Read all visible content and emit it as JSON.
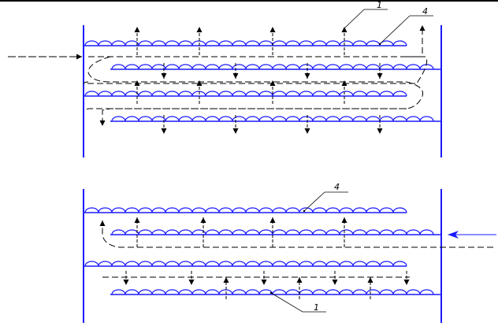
{
  "figure": {
    "colors": {
      "wall": "#1a1aff",
      "plate": "#1a1aff",
      "flow": "#000000",
      "leader": "#000000"
    },
    "callouts": {
      "top_plate": "1",
      "top_slot": "4",
      "bottom_slot": "4",
      "bottom_plate": "1"
    },
    "arrows": {
      "top_inlet": "arrow-right-icon",
      "bottom_inlet": "arrow-left-icon",
      "bubble_up": "arrow-up-icon",
      "bubble_down": "arrow-down-icon"
    }
  }
}
